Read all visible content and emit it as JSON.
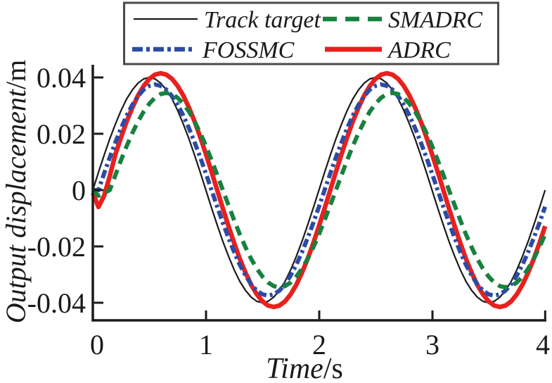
{
  "chart_data": {
    "type": "line",
    "title": "",
    "xlabel": "Time/s",
    "xlabel_main": "Time",
    "xlabel_unit": "/s",
    "ylabel": "Output displacement/m",
    "ylabel_main": "Output displacement",
    "ylabel_unit": "/m",
    "xlim": [
      0,
      4
    ],
    "ylim": [
      -0.0465,
      0.0445
    ],
    "grid": false,
    "legend_position": "top-inside-box",
    "x_tick_labels": [
      "0",
      "1",
      "2",
      "3",
      "4"
    ],
    "y_tick_labels": [
      "0.04",
      "0.02",
      "0",
      "-0.02",
      "-0.04"
    ],
    "x_ticks": [
      0,
      1,
      2,
      3,
      4
    ],
    "y_ticks": [
      0.04,
      0.02,
      0,
      -0.02,
      -0.04
    ],
    "x_step": 0.05,
    "series": [
      {
        "name": "Track target",
        "color": "#1a1a1a",
        "style": "solid",
        "width": 2.2,
        "amplitude_m": 0.04,
        "period_s": 2,
        "lag_s": 0,
        "values": [
          0,
          0.0063,
          0.0124,
          0.0182,
          0.0235,
          0.0283,
          0.0324,
          0.0356,
          0.038,
          0.0395,
          0.04,
          0.0395,
          0.038,
          0.0356,
          0.0324,
          0.0283,
          0.0235,
          0.0182,
          0.0124,
          0.0063,
          0,
          -0.0063,
          -0.0124,
          -0.0182,
          -0.0235,
          -0.0283,
          -0.0324,
          -0.0356,
          -0.038,
          -0.0395,
          -0.04,
          -0.0395,
          -0.038,
          -0.0356,
          -0.0324,
          -0.0283,
          -0.0235,
          -0.0182,
          -0.0124,
          -0.0063,
          0,
          0.0063,
          0.0124,
          0.0182,
          0.0235,
          0.0283,
          0.0324,
          0.0356,
          0.038,
          0.0395,
          0.04,
          0.0395,
          0.038,
          0.0356,
          0.0324,
          0.0283,
          0.0235,
          0.0182,
          0.0124,
          0.0063,
          0,
          -0.0063,
          -0.0124,
          -0.0182,
          -0.0235,
          -0.0283,
          -0.0324,
          -0.0356,
          -0.038,
          -0.0395,
          -0.04,
          -0.0395,
          -0.038,
          -0.0356,
          -0.0324,
          -0.0283,
          -0.0235,
          -0.0182,
          -0.0124,
          -0.0063,
          0
        ]
      },
      {
        "name": "ADRC",
        "color": "#e8201e",
        "style": "solid",
        "width": 6.5,
        "amplitude_m": 0.0415,
        "period_s": 2,
        "lag_s": 0.1,
        "values": [
          -0.001,
          -0.006,
          -0.002,
          0.005,
          0.0128,
          0.0188,
          0.0244,
          0.0293,
          0.0336,
          0.037,
          0.0395,
          0.041,
          0.0415,
          0.041,
          0.0395,
          0.037,
          0.0336,
          0.0293,
          0.0244,
          0.0188,
          0.0128,
          0.0065,
          0,
          -0.0065,
          -0.0128,
          -0.0188,
          -0.0244,
          -0.0293,
          -0.0336,
          -0.037,
          -0.0395,
          -0.041,
          -0.0415,
          -0.041,
          -0.0395,
          -0.037,
          -0.0336,
          -0.0293,
          -0.0244,
          -0.0188,
          -0.0128,
          -0.0065,
          0,
          0.0065,
          0.0128,
          0.0188,
          0.0244,
          0.0293,
          0.0336,
          0.037,
          0.0395,
          0.041,
          0.0415,
          0.041,
          0.0395,
          0.037,
          0.0336,
          0.0293,
          0.0244,
          0.0188,
          0.0128,
          0.0065,
          0,
          -0.0065,
          -0.0128,
          -0.0188,
          -0.0244,
          -0.0293,
          -0.0336,
          -0.037,
          -0.0395,
          -0.041,
          -0.0415,
          -0.041,
          -0.0395,
          -0.037,
          -0.0336,
          -0.0293,
          -0.0244,
          -0.0188,
          -0.0128
        ]
      },
      {
        "name": "FOSSMC",
        "color": "#2c4ba4",
        "style": "dashdot",
        "width": 6,
        "amplitude_m": 0.0375,
        "period_s": 2,
        "lag_s": 0.05,
        "values": [
          0,
          0,
          0.0059,
          0.0116,
          0.017,
          0.022,
          0.0265,
          0.0303,
          0.0334,
          0.0357,
          0.037,
          0.0375,
          0.037,
          0.0357,
          0.0334,
          0.0303,
          0.0265,
          0.022,
          0.017,
          0.0116,
          0.0059,
          0,
          -0.0059,
          -0.0116,
          -0.017,
          -0.022,
          -0.0265,
          -0.0303,
          -0.0334,
          -0.0357,
          -0.037,
          -0.0375,
          -0.037,
          -0.0357,
          -0.0334,
          -0.0303,
          -0.0265,
          -0.022,
          -0.017,
          -0.0116,
          -0.0059,
          0,
          0.0059,
          0.0116,
          0.017,
          0.022,
          0.0265,
          0.0303,
          0.0334,
          0.0357,
          0.037,
          0.0375,
          0.037,
          0.0357,
          0.0334,
          0.0303,
          0.0265,
          0.022,
          0.017,
          0.0116,
          0.0059,
          0,
          -0.0059,
          -0.0116,
          -0.017,
          -0.022,
          -0.0265,
          -0.0303,
          -0.0334,
          -0.0357,
          -0.037,
          -0.0375,
          -0.037,
          -0.0357,
          -0.0334,
          -0.0303,
          -0.0265,
          -0.022,
          -0.017,
          -0.0116,
          -0.0059
        ]
      },
      {
        "name": "SMADRC",
        "color": "#17813f",
        "style": "dashed",
        "width": 6,
        "amplitude_m": 0.0345,
        "period_s": 2,
        "lag_s": 0.15,
        "values": [
          0,
          -0.002,
          -0.001,
          0,
          0.0054,
          0.0107,
          0.0157,
          0.0203,
          0.0244,
          0.0279,
          0.0307,
          0.0328,
          0.0341,
          0.0345,
          0.0341,
          0.0328,
          0.0307,
          0.0279,
          0.0244,
          0.0203,
          0.0157,
          0.0107,
          0.0054,
          0,
          -0.0054,
          -0.0107,
          -0.0157,
          -0.0203,
          -0.0244,
          -0.0279,
          -0.0307,
          -0.0328,
          -0.0341,
          -0.0345,
          -0.0341,
          -0.0328,
          -0.0307,
          -0.0279,
          -0.0244,
          -0.0203,
          -0.0157,
          -0.0107,
          -0.0054,
          0,
          0.0054,
          0.0107,
          0.0157,
          0.0203,
          0.0244,
          0.0279,
          0.0307,
          0.0328,
          0.0341,
          0.0345,
          0.0341,
          0.0328,
          0.0307,
          0.0279,
          0.0244,
          0.0203,
          0.0157,
          0.0107,
          0.0054,
          0,
          -0.0054,
          -0.0107,
          -0.0157,
          -0.0203,
          -0.0244,
          -0.0279,
          -0.0307,
          -0.0328,
          -0.0341,
          -0.0345,
          -0.0341,
          -0.0328,
          -0.0307,
          -0.0279,
          -0.0244,
          -0.0203,
          -0.0157
        ]
      }
    ]
  },
  "legend": {
    "border_color": "#4a4a4a",
    "background": "#ffffff"
  },
  "colors": {
    "axis": "#1a1a1a",
    "text": "#1a1a1a",
    "background": "#ffffff"
  }
}
